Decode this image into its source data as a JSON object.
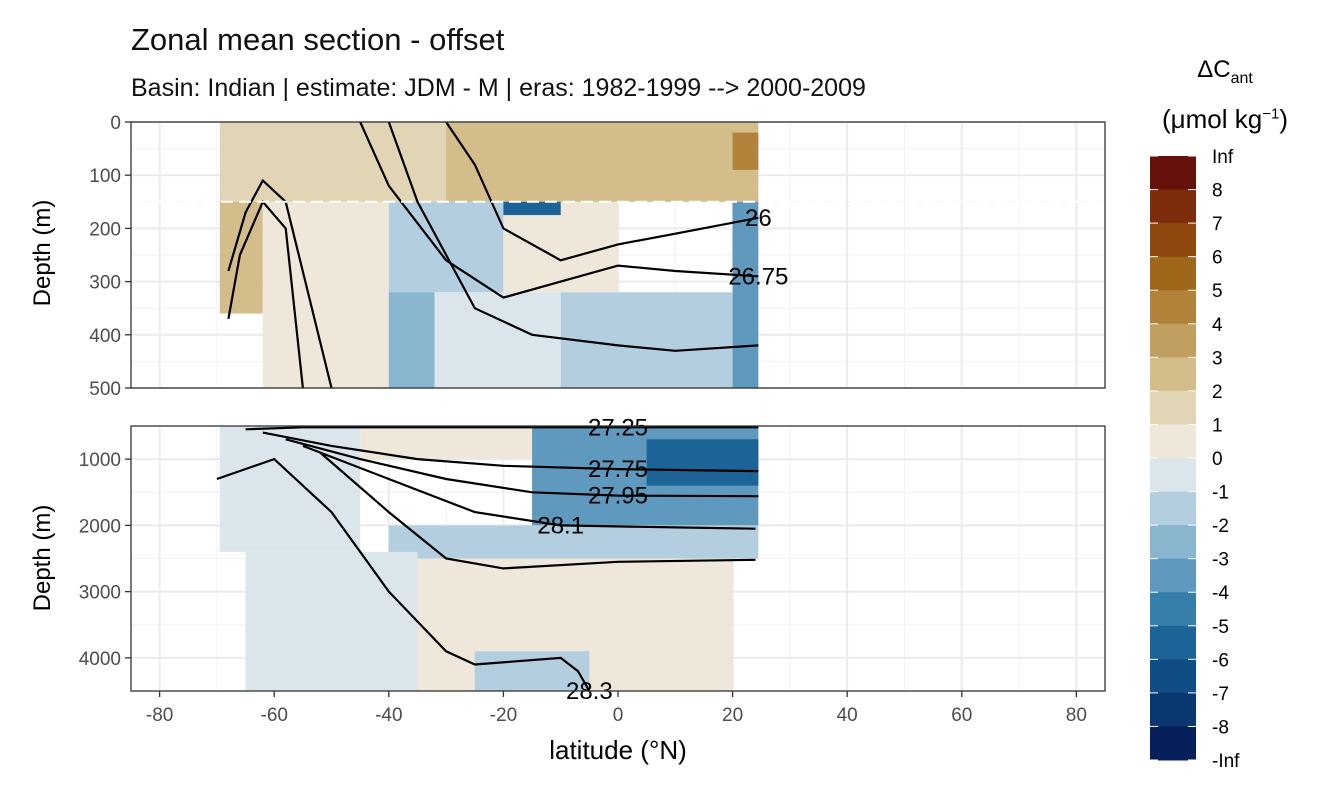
{
  "chart_data": {
    "type": "heatmap",
    "title": "Zonal mean section - offset",
    "subtitle": "Basin: Indian | estimate: JDM - M | eras: 1982-1999 --> 2000-2009",
    "xlabel": "latitude (°N)",
    "ylabel_top": "Depth (m)",
    "ylabel_bottom": "Depth (m)",
    "xlim": [
      -85,
      85
    ],
    "x_ticks": [
      -80,
      -60,
      -40,
      -20,
      0,
      20,
      40,
      60,
      80
    ],
    "data_lat_range": [
      -69.5,
      24.5
    ],
    "panels": [
      {
        "name": "upper",
        "ylim": [
          0,
          500
        ],
        "y_ticks": [
          0,
          100,
          200,
          300,
          400,
          500
        ],
        "reference_depth": 150
      },
      {
        "name": "lower",
        "ylim": [
          500,
          4500
        ],
        "y_ticks": [
          1000,
          2000,
          3000,
          4000
        ]
      }
    ],
    "legend": {
      "title_main": "ΔC",
      "title_sub": "ant",
      "unit_main": "(μmol kg",
      "unit_sup": "−1",
      "unit_close": ")",
      "breaks": [
        "Inf",
        "8",
        "7",
        "6",
        "5",
        "4",
        "3",
        "2",
        "1",
        "0",
        "-1",
        "-2",
        "-3",
        "-4",
        "-5",
        "-6",
        "-7",
        "-8",
        "-Inf"
      ],
      "colors": [
        "#66110a",
        "#7d2d0b",
        "#8f490e",
        "#a06619",
        "#b1833a",
        "#c19f61",
        "#d2bd8b",
        "#e2d5b6",
        "#eee7da",
        "#dbe6ec",
        "#b3cfdf",
        "#88b6cf",
        "#5f9abe",
        "#377fab",
        "#1c6498",
        "#104d86",
        "#0a376f",
        "#061e5a"
      ]
    },
    "regions": [
      {
        "panel": "upper",
        "lat": [
          -69.5,
          -30
        ],
        "depth": [
          0,
          150
        ],
        "value": 1.5
      },
      {
        "panel": "upper",
        "lat": [
          -30,
          24.5
        ],
        "depth": [
          0,
          150
        ],
        "value": 2.5
      },
      {
        "panel": "upper",
        "lat": [
          20,
          24.5
        ],
        "depth": [
          20,
          90
        ],
        "value": 4.5
      },
      {
        "panel": "upper",
        "lat": [
          -69.5,
          -62
        ],
        "depth": [
          150,
          360
        ],
        "value": 2.5
      },
      {
        "panel": "upper",
        "lat": [
          -62,
          -40
        ],
        "depth": [
          150,
          500
        ],
        "value": 0.5
      },
      {
        "panel": "upper",
        "lat": [
          -40,
          -20
        ],
        "depth": [
          150,
          320
        ],
        "value": -1.5
      },
      {
        "panel": "upper",
        "lat": [
          -40,
          -32
        ],
        "depth": [
          320,
          500
        ],
        "value": -2.5
      },
      {
        "panel": "upper",
        "lat": [
          -32,
          -10
        ],
        "depth": [
          320,
          500
        ],
        "value": -0.5
      },
      {
        "panel": "upper",
        "lat": [
          -20,
          0
        ],
        "depth": [
          150,
          320
        ],
        "value": 0.5
      },
      {
        "panel": "upper",
        "lat": [
          -10,
          20
        ],
        "depth": [
          320,
          500
        ],
        "value": -1.5
      },
      {
        "panel": "upper",
        "lat": [
          20,
          24.5
        ],
        "depth": [
          150,
          500
        ],
        "value": -3.5
      },
      {
        "panel": "upper",
        "lat": [
          -20,
          -10
        ],
        "depth": [
          150,
          175
        ],
        "value": -5.5
      },
      {
        "panel": "lower",
        "lat": [
          -69.5,
          -45
        ],
        "depth": [
          500,
          2400
        ],
        "value": -0.5
      },
      {
        "panel": "lower",
        "lat": [
          -45,
          -15
        ],
        "depth": [
          500,
          1000
        ],
        "value": 0.5
      },
      {
        "panel": "lower",
        "lat": [
          -15,
          24.5
        ],
        "depth": [
          500,
          2000
        ],
        "value": -3.5
      },
      {
        "panel": "lower",
        "lat": [
          5,
          24.5
        ],
        "depth": [
          700,
          1400
        ],
        "value": -5.5
      },
      {
        "panel": "lower",
        "lat": [
          -40,
          24.5
        ],
        "depth": [
          2000,
          2500
        ],
        "value": -1.5
      },
      {
        "panel": "lower",
        "lat": [
          -65,
          -35
        ],
        "depth": [
          2400,
          4500
        ],
        "value": -0.5
      },
      {
        "panel": "lower",
        "lat": [
          -35,
          20
        ],
        "depth": [
          2500,
          4500
        ],
        "value": 0.5
      },
      {
        "panel": "lower",
        "lat": [
          -25,
          -5
        ],
        "depth": [
          3900,
          4500
        ],
        "value": -1.5
      }
    ],
    "contours": [
      {
        "panel": "upper",
        "label": "26",
        "points": [
          [
            -30,
            0
          ],
          [
            -25,
            80
          ],
          [
            -20,
            200
          ],
          [
            -10,
            260
          ],
          [
            0,
            230
          ],
          [
            10,
            210
          ],
          [
            24.5,
            180
          ]
        ]
      },
      {
        "panel": "upper",
        "label": "26.75",
        "points": [
          [
            -45,
            0
          ],
          [
            -40,
            120
          ],
          [
            -30,
            260
          ],
          [
            -20,
            330
          ],
          [
            -10,
            300
          ],
          [
            0,
            270
          ],
          [
            10,
            280
          ],
          [
            24.5,
            290
          ]
        ]
      },
      {
        "panel": "upper",
        "label": "",
        "points": [
          [
            -40,
            0
          ],
          [
            -35,
            150
          ],
          [
            -25,
            350
          ],
          [
            -15,
            400
          ],
          [
            0,
            420
          ],
          [
            10,
            430
          ],
          [
            24.5,
            420
          ]
        ]
      },
      {
        "panel": "upper",
        "label": "",
        "points": [
          [
            -68,
            370
          ],
          [
            -66,
            250
          ],
          [
            -62,
            150
          ],
          [
            -58,
            200
          ],
          [
            -55,
            500
          ]
        ]
      },
      {
        "panel": "upper",
        "label": "",
        "points": [
          [
            -68,
            280
          ],
          [
            -65,
            170
          ],
          [
            -62,
            110
          ],
          [
            -58,
            150
          ],
          [
            -50,
            500
          ]
        ]
      },
      {
        "panel": "lower",
        "label": "27.25",
        "points": [
          [
            -65,
            550
          ],
          [
            -55,
            520
          ],
          [
            -30,
            520
          ],
          [
            0,
            520
          ],
          [
            24.5,
            520
          ]
        ]
      },
      {
        "panel": "lower",
        "label": "27.75",
        "points": [
          [
            -62,
            600
          ],
          [
            -50,
            800
          ],
          [
            -35,
            1000
          ],
          [
            -20,
            1100
          ],
          [
            0,
            1150
          ],
          [
            24.5,
            1180
          ]
        ]
      },
      {
        "panel": "lower",
        "label": "27.95",
        "points": [
          [
            -58,
            700
          ],
          [
            -45,
            1000
          ],
          [
            -30,
            1300
          ],
          [
            -15,
            1500
          ],
          [
            0,
            1550
          ],
          [
            24.5,
            1560
          ]
        ]
      },
      {
        "panel": "lower",
        "label": "28.1",
        "points": [
          [
            -55,
            800
          ],
          [
            -40,
            1300
          ],
          [
            -25,
            1800
          ],
          [
            -10,
            2000
          ],
          [
            10,
            2030
          ],
          [
            24,
            2050
          ]
        ]
      },
      {
        "panel": "lower",
        "label": "",
        "points": [
          [
            -52,
            900
          ],
          [
            -40,
            1800
          ],
          [
            -30,
            2500
          ],
          [
            -20,
            2650
          ],
          [
            0,
            2550
          ],
          [
            24,
            2520
          ]
        ]
      },
      {
        "panel": "lower",
        "label": "28.3",
        "points": [
          [
            -70,
            1300
          ],
          [
            -60,
            1000
          ],
          [
            -50,
            1800
          ],
          [
            -40,
            3000
          ],
          [
            -30,
            3900
          ],
          [
            -25,
            4100
          ],
          [
            -10,
            4000
          ],
          [
            -7,
            4200
          ],
          [
            -5,
            4500
          ]
        ]
      }
    ]
  }
}
